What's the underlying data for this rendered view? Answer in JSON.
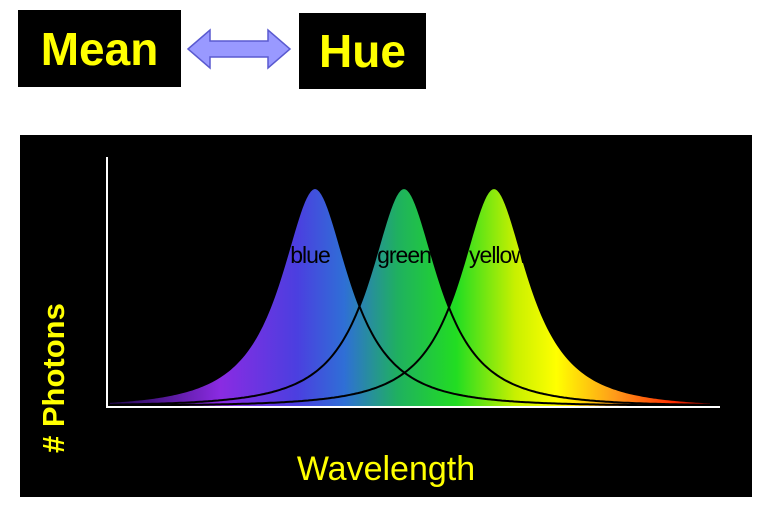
{
  "title_left": "Mean",
  "title_right": "Hue",
  "arrow_icon": "double-headed-arrow",
  "colors": {
    "title_text": "#ffff00",
    "title_box": "#000000",
    "arrow_fill": "#9999ff",
    "panel_background": "#000000",
    "axis_label": "#ffff00",
    "axis_lines": "#ffffff",
    "curve_lines": "#000000"
  },
  "chart": {
    "ylabel": "# Photons",
    "xlabel": "Wavelength",
    "curves": [
      {
        "name": "blue"
      },
      {
        "name": "green"
      },
      {
        "name": "yellow"
      }
    ]
  }
}
